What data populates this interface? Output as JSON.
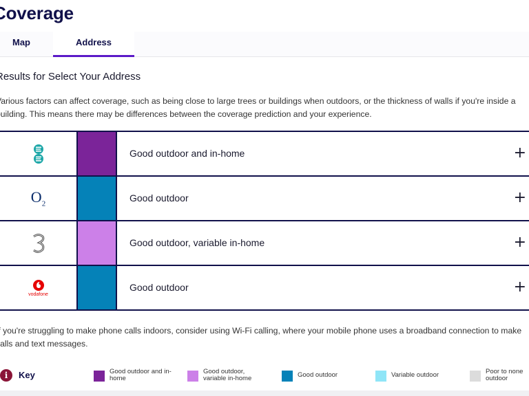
{
  "page": {
    "title": "Coverage"
  },
  "tabs": [
    {
      "label": "Map",
      "active": false
    },
    {
      "label": "Address",
      "active": true
    }
  ],
  "results": {
    "title": "Results for Select Your Address",
    "intro": "Various factors can affect coverage, such as being close to large trees or buildings when outdoors, or the thickness of walls if you're inside a building. This means there may be differences between the coverage prediction and your experience."
  },
  "networks": [
    {
      "logo": "ee-logo",
      "status": "Good outdoor and in-home",
      "color": "#7b2499"
    },
    {
      "logo": "o2-logo",
      "status": "Good outdoor",
      "color": "#0582b8"
    },
    {
      "logo": "three-logo",
      "status": "Good outdoor, variable in-home",
      "color": "#cc80e8"
    },
    {
      "logo": "vodafone-logo",
      "status": "Good outdoor",
      "color": "#0582b8"
    }
  ],
  "logo_text": {
    "o2": "O",
    "o2_sub": "2",
    "vodafone": "vodafone"
  },
  "wifi_note": "If you're struggling to make phone calls indoors, consider using Wi-Fi calling, where your mobile phone uses a broadband connection to make calls and text messages.",
  "key": {
    "title": "Key",
    "info_glyph": "i",
    "items": [
      {
        "label": "Good outdoor and in-home",
        "color": "#7b2499"
      },
      {
        "label": "Good outdoor, variable in-home",
        "color": "#cc80e8"
      },
      {
        "label": "Good outdoor",
        "color": "#0582b8"
      },
      {
        "label": "Variable outdoor",
        "color": "#8fe5f7"
      },
      {
        "label": "Poor to none outdoor",
        "color": "#dcdcdc"
      }
    ]
  }
}
